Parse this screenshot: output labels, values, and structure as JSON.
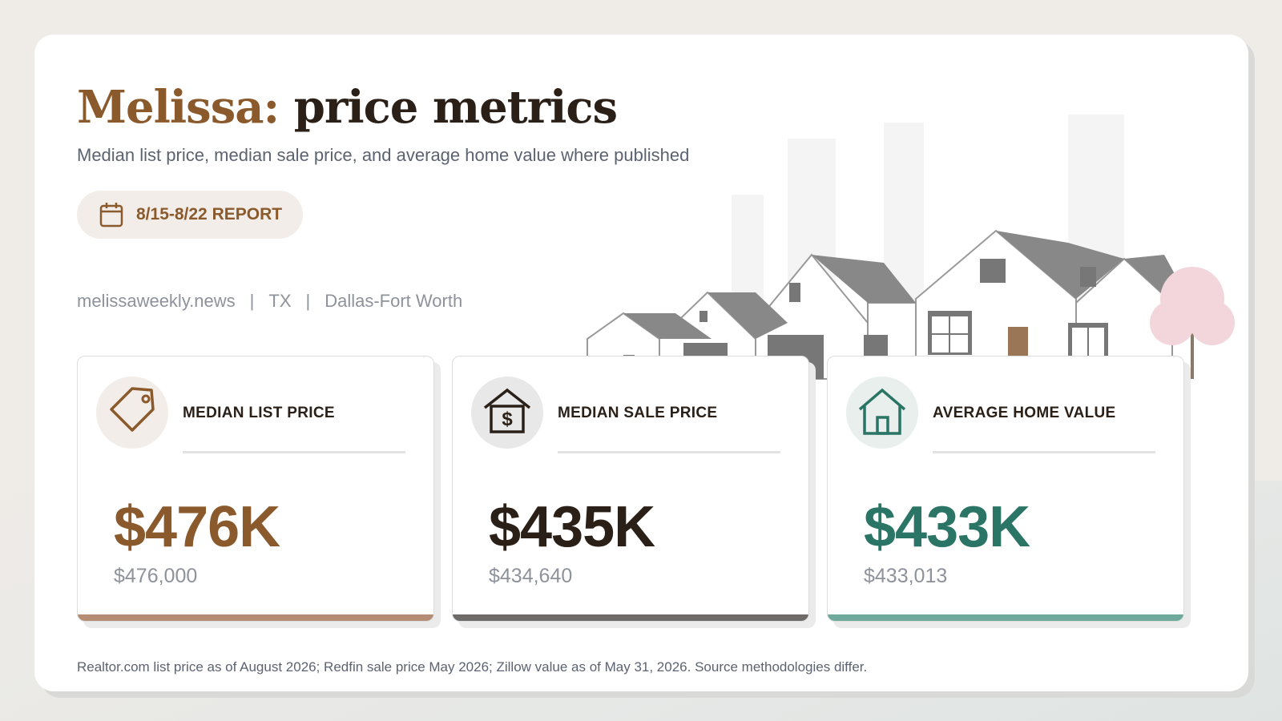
{
  "header": {
    "title_place": "Melissa:",
    "title_rest": "price metrics",
    "subtitle": "Median list price, median sale price, and average home value where published",
    "badge": "8/15-8/22 REPORT",
    "meta": [
      "melissaweekly.news",
      "TX",
      "Dallas-Fort Worth"
    ],
    "meta_separator": "|"
  },
  "cards": [
    {
      "label": "MEDIAN LIST PRICE",
      "value": "$476K",
      "exact": "$476,000",
      "color": "#8a5a2c",
      "bar": "#b58d74",
      "icon": "tag"
    },
    {
      "label": "MEDIAN SALE PRICE",
      "value": "$435K",
      "exact": "$434,640",
      "color": "#2a2018",
      "bar": "#6d6a68",
      "icon": "sale"
    },
    {
      "label": "AVERAGE HOME VALUE",
      "value": "$433K",
      "exact": "$433,013",
      "color": "#2a7565",
      "bar": "#6fa99b",
      "icon": "home"
    }
  ],
  "footnote": "Realtor.com list price as of August 2026; Redfin sale price May 2026; Zillow value as of May 31, 2026. Source methodologies differ."
}
